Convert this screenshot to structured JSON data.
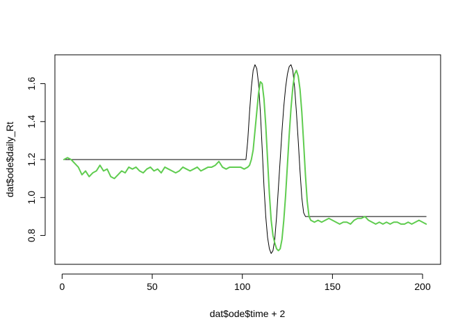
{
  "chart_data": {
    "type": "line",
    "xlabel": "dat$ode$time + 2",
    "ylabel": "dat$ode$daily_Rt",
    "xlim": [
      -4,
      210
    ],
    "ylim": [
      0.648,
      1.752
    ],
    "x_ticks": [
      0,
      50,
      100,
      150,
      200
    ],
    "y_ticks": [
      0.8,
      1.0,
      1.2,
      1.4,
      1.6
    ],
    "x_tick_labels": [
      "0",
      "50",
      "100",
      "150",
      "200"
    ],
    "y_tick_labels": [
      "0.8",
      "1.0",
      "1.2",
      "1.4",
      "1.6"
    ],
    "grid": false,
    "legend": "none",
    "series": [
      {
        "color": "#000000",
        "line_width": 1,
        "points": [
          [
            1,
            1.2
          ],
          [
            102,
            1.2
          ],
          [
            103,
            1.3
          ],
          [
            104,
            1.45
          ],
          [
            105,
            1.58
          ],
          [
            106,
            1.67
          ],
          [
            107,
            1.7
          ],
          [
            108,
            1.68
          ],
          [
            109,
            1.6
          ],
          [
            110,
            1.45
          ],
          [
            111,
            1.26
          ],
          [
            112,
            1.06
          ],
          [
            113,
            0.9
          ],
          [
            114,
            0.79
          ],
          [
            115,
            0.73
          ],
          [
            116,
            0.705
          ],
          [
            117,
            0.72
          ],
          [
            118,
            0.78
          ],
          [
            119,
            0.9
          ],
          [
            120,
            1.05
          ],
          [
            121,
            1.2
          ],
          [
            122,
            1.35
          ],
          [
            123,
            1.48
          ],
          [
            124,
            1.58
          ],
          [
            125,
            1.65
          ],
          [
            126,
            1.69
          ],
          [
            127,
            1.7
          ],
          [
            128,
            1.67
          ],
          [
            129,
            1.58
          ],
          [
            130,
            1.45
          ],
          [
            131,
            1.3
          ],
          [
            132,
            1.14
          ],
          [
            133,
            1.0
          ],
          [
            134,
            0.92
          ],
          [
            135,
            0.9
          ],
          [
            202,
            0.9
          ]
        ]
      },
      {
        "color": "#5fcc4f",
        "line_width": 2,
        "points": [
          [
            1,
            1.2
          ],
          [
            3,
            1.21
          ],
          [
            5,
            1.2
          ],
          [
            7,
            1.18
          ],
          [
            9,
            1.16
          ],
          [
            11,
            1.12
          ],
          [
            13,
            1.14
          ],
          [
            15,
            1.11
          ],
          [
            17,
            1.13
          ],
          [
            19,
            1.14
          ],
          [
            21,
            1.17
          ],
          [
            23,
            1.14
          ],
          [
            25,
            1.15
          ],
          [
            27,
            1.11
          ],
          [
            29,
            1.1
          ],
          [
            31,
            1.12
          ],
          [
            33,
            1.14
          ],
          [
            35,
            1.13
          ],
          [
            37,
            1.16
          ],
          [
            39,
            1.15
          ],
          [
            41,
            1.16
          ],
          [
            43,
            1.14
          ],
          [
            45,
            1.13
          ],
          [
            47,
            1.15
          ],
          [
            49,
            1.16
          ],
          [
            51,
            1.14
          ],
          [
            53,
            1.15
          ],
          [
            55,
            1.13
          ],
          [
            57,
            1.16
          ],
          [
            59,
            1.15
          ],
          [
            61,
            1.14
          ],
          [
            63,
            1.13
          ],
          [
            65,
            1.14
          ],
          [
            67,
            1.16
          ],
          [
            69,
            1.15
          ],
          [
            71,
            1.14
          ],
          [
            73,
            1.15
          ],
          [
            75,
            1.16
          ],
          [
            77,
            1.14
          ],
          [
            79,
            1.15
          ],
          [
            81,
            1.16
          ],
          [
            83,
            1.16
          ],
          [
            85,
            1.17
          ],
          [
            87,
            1.19
          ],
          [
            89,
            1.16
          ],
          [
            91,
            1.15
          ],
          [
            93,
            1.16
          ],
          [
            95,
            1.16
          ],
          [
            97,
            1.16
          ],
          [
            99,
            1.16
          ],
          [
            101,
            1.15
          ],
          [
            103,
            1.16
          ],
          [
            104,
            1.17
          ],
          [
            105,
            1.2
          ],
          [
            106,
            1.25
          ],
          [
            107,
            1.35
          ],
          [
            108,
            1.45
          ],
          [
            109,
            1.55
          ],
          [
            110,
            1.61
          ],
          [
            111,
            1.6
          ],
          [
            112,
            1.52
          ],
          [
            113,
            1.38
          ],
          [
            114,
            1.2
          ],
          [
            115,
            1.02
          ],
          [
            116,
            0.88
          ],
          [
            117,
            0.8
          ],
          [
            118,
            0.76
          ],
          [
            119,
            0.73
          ],
          [
            120,
            0.72
          ],
          [
            121,
            0.73
          ],
          [
            122,
            0.78
          ],
          [
            123,
            0.88
          ],
          [
            124,
            1.01
          ],
          [
            125,
            1.17
          ],
          [
            126,
            1.33
          ],
          [
            127,
            1.47
          ],
          [
            128,
            1.58
          ],
          [
            129,
            1.65
          ],
          [
            130,
            1.67
          ],
          [
            131,
            1.64
          ],
          [
            132,
            1.57
          ],
          [
            133,
            1.45
          ],
          [
            134,
            1.29
          ],
          [
            135,
            1.12
          ],
          [
            136,
            0.98
          ],
          [
            137,
            0.9
          ],
          [
            138,
            0.88
          ],
          [
            140,
            0.87
          ],
          [
            142,
            0.88
          ],
          [
            144,
            0.87
          ],
          [
            146,
            0.88
          ],
          [
            148,
            0.89
          ],
          [
            150,
            0.88
          ],
          [
            152,
            0.87
          ],
          [
            154,
            0.86
          ],
          [
            156,
            0.87
          ],
          [
            158,
            0.87
          ],
          [
            160,
            0.86
          ],
          [
            162,
            0.88
          ],
          [
            164,
            0.89
          ],
          [
            166,
            0.89
          ],
          [
            168,
            0.9
          ],
          [
            170,
            0.88
          ],
          [
            172,
            0.87
          ],
          [
            174,
            0.86
          ],
          [
            176,
            0.87
          ],
          [
            178,
            0.86
          ],
          [
            180,
            0.87
          ],
          [
            182,
            0.86
          ],
          [
            184,
            0.87
          ],
          [
            186,
            0.87
          ],
          [
            188,
            0.86
          ],
          [
            190,
            0.86
          ],
          [
            192,
            0.87
          ],
          [
            194,
            0.86
          ],
          [
            196,
            0.87
          ],
          [
            198,
            0.88
          ],
          [
            200,
            0.87
          ],
          [
            202,
            0.86
          ]
        ]
      }
    ]
  }
}
